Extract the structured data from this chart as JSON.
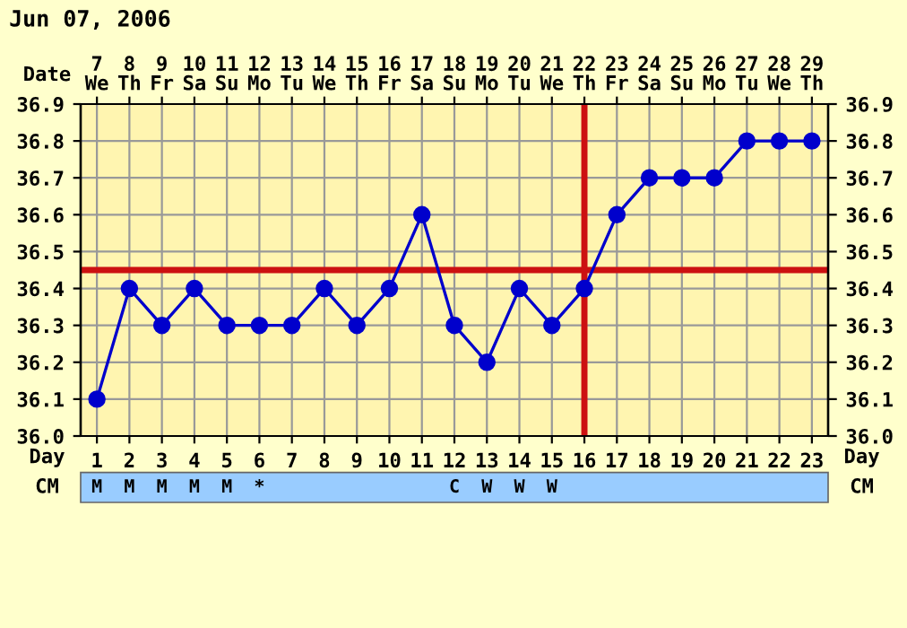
{
  "chart_data": {
    "type": "line",
    "title": "Jun 07, 2006",
    "xlabel": "Day",
    "x2label": "Date",
    "x": [
      1,
      2,
      3,
      4,
      5,
      6,
      7,
      8,
      9,
      10,
      11,
      12,
      13,
      14,
      15,
      16,
      17,
      18,
      19,
      20,
      21,
      22,
      23
    ],
    "series": [
      {
        "color": "#0000cc",
        "values": [
          36.1,
          36.4,
          36.3,
          36.4,
          36.3,
          36.3,
          36.3,
          36.4,
          36.3,
          36.4,
          36.6,
          36.3,
          36.2,
          36.4,
          36.3,
          36.4,
          36.6,
          36.7,
          36.7,
          36.7,
          36.8,
          36.8,
          36.8
        ]
      }
    ],
    "xlim": [
      0.5,
      23.5
    ],
    "xticks": [
      1,
      2,
      3,
      4,
      5,
      6,
      7,
      8,
      9,
      10,
      11,
      12,
      13,
      14,
      15,
      16,
      17,
      18,
      19,
      20,
      21,
      22,
      23
    ],
    "x2lim": [
      6.5,
      29.5
    ],
    "x2ticks": [
      {
        "value": 7,
        "label": "7\nWe"
      },
      {
        "value": 8,
        "label": "8\nTh"
      },
      {
        "value": 9,
        "label": "9\nFr"
      },
      {
        "value": 10,
        "label": "10\nSa"
      },
      {
        "value": 11,
        "label": "11\nSu"
      },
      {
        "value": 12,
        "label": "12\nMo"
      },
      {
        "value": 13,
        "label": "13\nTu"
      },
      {
        "value": 14,
        "label": "14\nWe"
      },
      {
        "value": 15,
        "label": "15\nTh"
      },
      {
        "value": 16,
        "label": "16\nFr"
      },
      {
        "value": 17,
        "label": "17\nSa"
      },
      {
        "value": 18,
        "label": "18\nSu"
      },
      {
        "value": 19,
        "label": "19\nMo"
      },
      {
        "value": 20,
        "label": "20\nTu"
      },
      {
        "value": 21,
        "label": "21\nWe"
      },
      {
        "value": 22,
        "label": "22\nTh"
      },
      {
        "value": 23,
        "label": "23\nFr"
      },
      {
        "value": 24,
        "label": "24\nSa"
      },
      {
        "value": 25,
        "label": "25\nSu"
      },
      {
        "value": 26,
        "label": "26\nMo"
      },
      {
        "value": 27,
        "label": "27\nTu"
      },
      {
        "value": 28,
        "label": "28\nWe"
      },
      {
        "value": 29,
        "label": "29\nTh"
      }
    ],
    "ylim": [
      36.0,
      36.9
    ],
    "yticks": [
      {
        "value": 36.0,
        "label": "36.0"
      },
      {
        "value": 36.1,
        "label": "36.1"
      },
      {
        "value": 36.2,
        "label": "36.2"
      },
      {
        "value": 36.3,
        "label": "36.3"
      },
      {
        "value": 36.4,
        "label": "36.4"
      },
      {
        "value": 36.5,
        "label": "36.5"
      },
      {
        "value": 36.6,
        "label": "36.6"
      },
      {
        "value": 36.7,
        "label": "36.7"
      },
      {
        "value": 36.8,
        "label": "36.8"
      },
      {
        "value": 36.9,
        "label": "36.9"
      }
    ],
    "y2lim": [
      36.0,
      36.9
    ],
    "y2ticks": [
      {
        "value": 36.0,
        "label": "36.0"
      },
      {
        "value": 36.1,
        "label": "36.1"
      },
      {
        "value": 36.2,
        "label": "36.2"
      },
      {
        "value": 36.3,
        "label": "36.3"
      },
      {
        "value": 36.4,
        "label": "36.4"
      },
      {
        "value": 36.5,
        "label": "36.5"
      },
      {
        "value": 36.6,
        "label": "36.6"
      },
      {
        "value": 36.7,
        "label": "36.7"
      },
      {
        "value": 36.8,
        "label": "36.8"
      },
      {
        "value": 36.9,
        "label": "36.9"
      }
    ],
    "ref_lines": [
      {
        "axis": "y",
        "value": 36.45,
        "color": "#cc1111"
      },
      {
        "axis": "x",
        "value": 16,
        "color": "#cc1111"
      }
    ],
    "annotations": [
      "CM",
      "M  M  M  M  M  *                 C  W  W  W"
    ],
    "grid": true,
    "marker": "circle",
    "line_style": "solid"
  }
}
